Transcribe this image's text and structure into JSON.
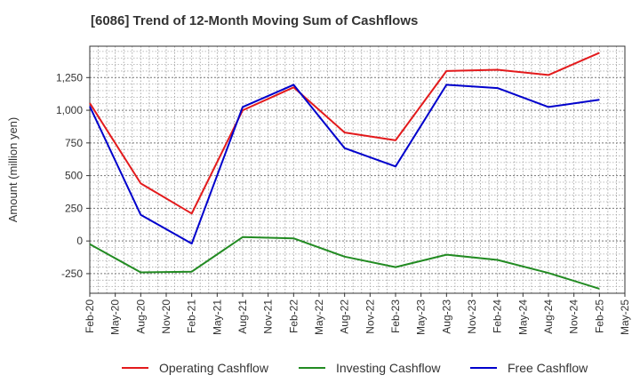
{
  "chart_data": {
    "type": "line",
    "title": "[6086]  Trend of 12-Month Moving Sum of Cashflows",
    "xlabel": "",
    "ylabel": "Amount (million yen)",
    "x": [
      "Feb-20",
      "Aug-20",
      "Feb-21",
      "Aug-21",
      "Feb-22",
      "Aug-22",
      "Feb-23",
      "Aug-23",
      "Feb-24",
      "Aug-24",
      "Feb-25"
    ],
    "x_ticks": [
      "Feb-20",
      "May-20",
      "Aug-20",
      "Nov-20",
      "Feb-21",
      "May-21",
      "Aug-21",
      "Nov-21",
      "Feb-22",
      "May-22",
      "Aug-22",
      "Nov-22",
      "Feb-23",
      "May-23",
      "Aug-23",
      "Nov-23",
      "Feb-24",
      "May-24",
      "Aug-24",
      "Nov-24",
      "Feb-25",
      "May-25"
    ],
    "y_ticks": [
      -250,
      0,
      250,
      500,
      750,
      1000,
      1250
    ],
    "y_tick_labels": [
      "-250",
      "0",
      "250",
      "500",
      "750",
      "1,000",
      "1,250"
    ],
    "ylim": [
      -400,
      1490
    ],
    "grid": true,
    "legend_position": "bottom",
    "series": [
      {
        "name": "Operating Cashflow",
        "color": "#e31a1c",
        "values": [
          1055,
          440,
          210,
          1000,
          1175,
          830,
          770,
          1300,
          1310,
          1270,
          1440
        ]
      },
      {
        "name": "Investing Cashflow",
        "color": "#228b22",
        "values": [
          -25,
          -240,
          -235,
          30,
          20,
          -120,
          -200,
          -105,
          -145,
          -245,
          -365
        ]
      },
      {
        "name": "Free Cashflow",
        "color": "#0000cc",
        "values": [
          1030,
          200,
          -20,
          1025,
          1195,
          710,
          570,
          1195,
          1170,
          1025,
          1080
        ]
      }
    ]
  }
}
